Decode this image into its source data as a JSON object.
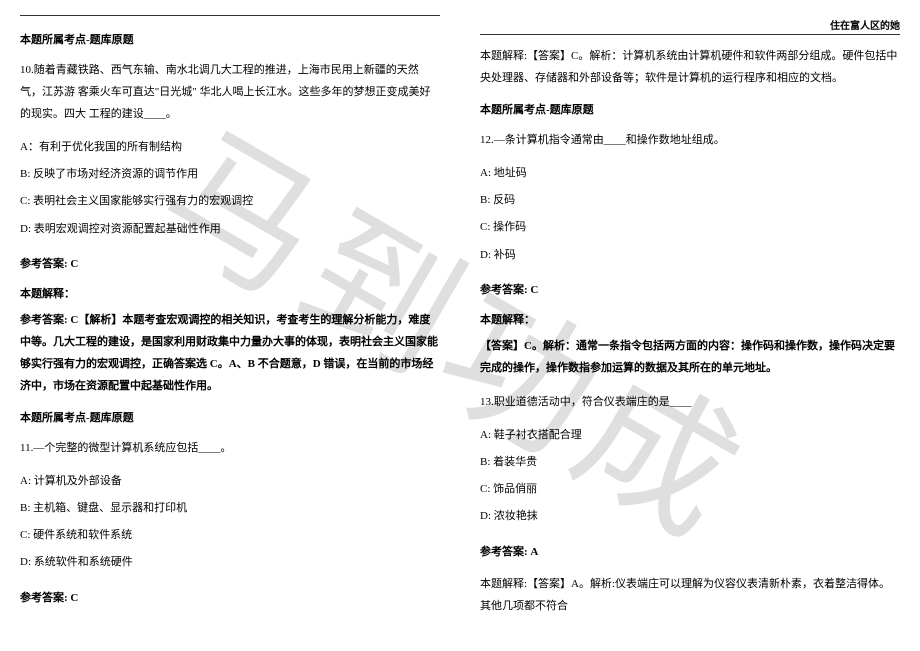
{
  "header": {
    "right_text": "住在富人区的她"
  },
  "watermark": "马到功成",
  "left_column": {
    "topic_label_1": "本题所属考点-题库原题",
    "q10": {
      "text": "10.随着青藏铁路、西气东输、南水北调几大工程的推进，上海市民用上新疆的天然气，江苏游  客乘火车可直达\"日光城\" 华北人喝上长江水。这些多年的梦想正变成美好的现实。四大  工程的建设____。",
      "opt_a": "A：有利于优化我国的所有制结构",
      "opt_b": "B: 反映了市场对经济资源的调节作用",
      "opt_c": "C: 表明社会主义国家能够实行强有力的宏观调控",
      "opt_d": "D: 表明宏观调控对资源配置起基础性作用"
    },
    "q10_answer_label": "参考答案: C",
    "q10_explain_label": "本题解释：",
    "q10_explain": "参考答案: C【解析】本题考查宏观调控的相关知识，考查考生的理解分析能力，难度中等。几大工程的建设，是国家利用财政集中力量办大事的体现，表明社会主义国家能够实行强有力的宏观调控，正确答案选 C。A、B 不合题意，D 错误，在当前的市场经济中，市场在资源配置中起基础性作用。",
    "topic_label_2": "本题所属考点-题库原题",
    "q11": {
      "text": "11.—个完整的微型计算机系统应包括____。",
      "opt_a": "A: 计算机及外部设备",
      "opt_b": "B: 主机箱、键盘、显示器和打印机",
      "opt_c": "C: 硬件系统和软件系统",
      "opt_d": "D: 系统软件和系统硬件"
    },
    "q11_answer_label": "参考答案: C"
  },
  "right_column": {
    "q11_explain": "本题解释:【答案】C。解析：计算机系统由计算机硬件和软件两部分组成。硬件包括中央处理器、存储器和外部设备等；软件是计算机的运行程序和相应的文档。",
    "topic_label_3": "本题所属考点-题库原题",
    "q12": {
      "text": "12.—条计算机指令通常由____和操作数地址组成。",
      "opt_a": "A: 地址码",
      "opt_b": "B: 反码",
      "opt_c": "C: 操作码",
      "opt_d": "D: 补码"
    },
    "q12_answer_label": "参考答案: C",
    "q12_explain_label": "本题解释：",
    "q12_explain": "【答案】C。解析：通常一条指令包括两方面的内容：操作码和操作数，操作码决定要完成的操作，操作数指参加运算的数据及其所在的单元地址。",
    "q13": {
      "text": "13.职业道德活动中，符合仪表端庄的是____",
      "opt_a": "A: 鞋子衬衣搭配合理",
      "opt_b": "B: 着装华贵",
      "opt_c": "C: 饰品俏丽",
      "opt_d": "D: 浓妆艳抹"
    },
    "q13_answer_label": "参考答案: A",
    "q13_explain": "本题解释:【答案】A。解析:仪表端庄可以理解为仪容仪表清新朴素，衣着整洁得体。其他几项都不符合"
  }
}
